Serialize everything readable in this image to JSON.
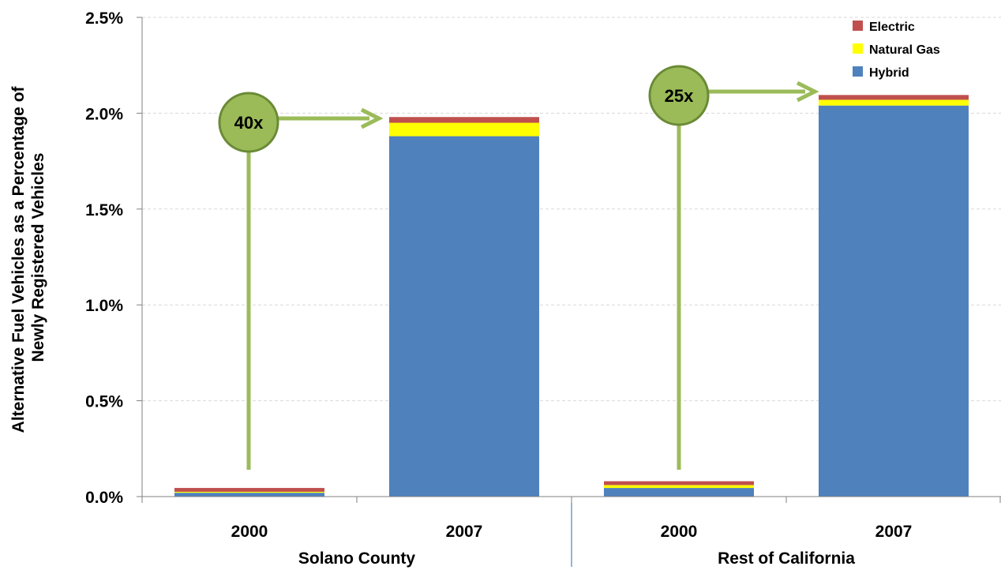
{
  "chart_data": {
    "type": "bar",
    "stacked": true,
    "ylabel": "Alternative Fuel Vehicles as a Percentage of Newly Registered Vehicles",
    "ylabel_lines": [
      "Alternative Fuel Vehicles as a Percentage of",
      "Newly Registered Vehicles"
    ],
    "ylim": [
      0,
      2.5
    ],
    "yticks": [
      0,
      0.5,
      1.0,
      1.5,
      2.0,
      2.5
    ],
    "ytick_labels": [
      "0.0%",
      "0.5%",
      "1.0%",
      "1.5%",
      "2.0%",
      "2.5%"
    ],
    "grid": true,
    "legend_position": "top-right",
    "categories": [
      "2000",
      "2007",
      "2000",
      "2007"
    ],
    "groups": [
      {
        "label": "Solano County",
        "categories": [
          0,
          1
        ]
      },
      {
        "label": "Rest of California",
        "categories": [
          2,
          3
        ]
      }
    ],
    "series": [
      {
        "name": "Hybrid",
        "color": "#4f81bd",
        "values": [
          0.02,
          1.88,
          0.045,
          2.04
        ]
      },
      {
        "name": "Natural Gas",
        "color": "#ffff00",
        "values": [
          0.005,
          0.07,
          0.015,
          0.03
        ]
      },
      {
        "name": "Electric",
        "color": "#c0504d",
        "values": [
          0.02,
          0.03,
          0.02,
          0.025
        ]
      }
    ],
    "annotations": [
      {
        "text": "40x",
        "from_category": 0,
        "to_category": 1,
        "color": "#9bbb59"
      },
      {
        "text": "25x",
        "from_category": 2,
        "to_category": 3,
        "color": "#9bbb59"
      }
    ]
  }
}
